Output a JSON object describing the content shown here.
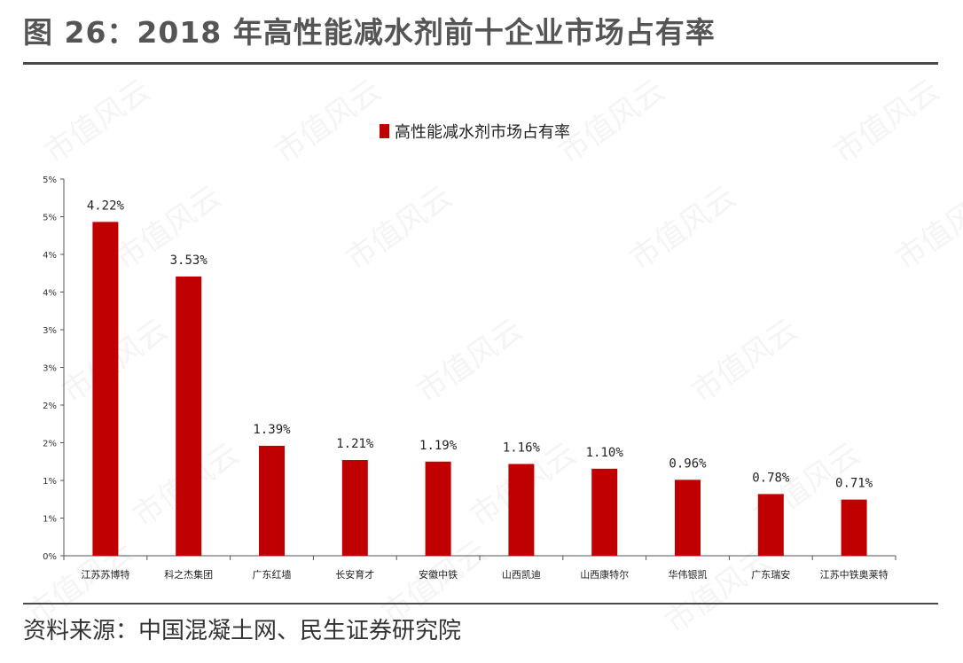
{
  "header": {
    "title": "图 26：2018 年高性能减水剂前十企业市场占有率"
  },
  "source": {
    "text": "资料来源：中国混凝土网、民生证券研究院"
  },
  "watermark": {
    "text": "市值风云"
  },
  "colors": {
    "bar": "#c00000",
    "axis": "#555555",
    "rule": "#4a4a4a"
  },
  "chart_data": {
    "type": "bar",
    "categories": [
      "江苏苏博特",
      "科之杰集团",
      "广东红墙",
      "长安育才",
      "安徽中铁",
      "山西凯迪",
      "山西康特尔",
      "华伟银凯",
      "广东瑞安",
      "江苏中铁奥莱特"
    ],
    "series": [
      {
        "name": "高性能减水剂市场占有率",
        "values": [
          4.22,
          3.53,
          1.39,
          1.21,
          1.19,
          1.16,
          1.1,
          0.96,
          0.78,
          0.71
        ]
      }
    ],
    "data_labels": [
      "4.22%",
      "3.53%",
      "1.39%",
      "1.21%",
      "1.19%",
      "1.16%",
      "1.10%",
      "0.96%",
      "0.78%",
      "0.71%"
    ],
    "y_ticks": [
      0,
      0.5,
      1,
      1.5,
      2,
      2.5,
      3,
      3.5,
      4,
      4.5,
      5
    ],
    "y_tick_labels": [
      "0%",
      "1%",
      "1%",
      "2%",
      "2%",
      "3%",
      "3%",
      "4%",
      "4%",
      "5%",
      "5%"
    ],
    "ylim": [
      0,
      5
    ],
    "title": "",
    "xlabel": "",
    "ylabel": "",
    "legend_position": "top-center",
    "grid": false
  }
}
